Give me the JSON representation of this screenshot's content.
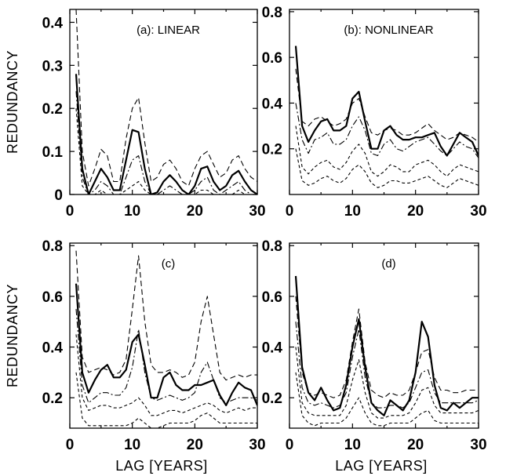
{
  "figure": {
    "ylabel": "REDUNDANCY",
    "xlabel": "LAG [YEARS]"
  },
  "chart_data": [
    {
      "type": "line",
      "title": "(a): LINEAR",
      "xlim": [
        0,
        30
      ],
      "ylim": [
        0,
        0.43
      ],
      "xticks": [
        0,
        10,
        20,
        30
      ],
      "yticks": [
        0,
        0.1,
        0.2,
        0.3,
        0.4
      ],
      "ytick_labels": [
        "0",
        "0.1",
        "0.2",
        "0.3",
        "0.4"
      ],
      "x": [
        1,
        2,
        3,
        4,
        5,
        6,
        7,
        8,
        9,
        10,
        11,
        12,
        13,
        14,
        15,
        16,
        17,
        18,
        19,
        20,
        21,
        22,
        23,
        24,
        25,
        26,
        27,
        28,
        29,
        30
      ],
      "series": [
        {
          "style": "solid",
          "values": [
            0.28,
            0.06,
            0.0,
            0.03,
            0.06,
            0.04,
            0.01,
            0.01,
            0.08,
            0.15,
            0.145,
            0.06,
            0.0,
            0.005,
            0.03,
            0.045,
            0.03,
            0.01,
            0.0,
            0.02,
            0.06,
            0.065,
            0.03,
            0.01,
            0.02,
            0.045,
            0.055,
            0.03,
            0.01,
            0.0
          ]
        },
        {
          "style": "dashed",
          "values": [
            0.43,
            0.1,
            0.02,
            0.06,
            0.105,
            0.09,
            0.03,
            0.03,
            0.13,
            0.2,
            0.225,
            0.12,
            0.03,
            0.04,
            0.07,
            0.08,
            0.06,
            0.03,
            0.02,
            0.06,
            0.09,
            0.1,
            0.07,
            0.04,
            0.05,
            0.08,
            0.09,
            0.06,
            0.04,
            0.03
          ]
        },
        {
          "style": "dash-dot",
          "values": [
            0.24,
            0.04,
            0.0,
            0.01,
            0.03,
            0.02,
            0.0,
            0.0,
            0.04,
            0.08,
            0.09,
            0.03,
            0.0,
            0.0,
            0.01,
            0.02,
            0.01,
            0.0,
            0.0,
            0.01,
            0.03,
            0.04,
            0.01,
            0.0,
            0.01,
            0.02,
            0.03,
            0.01,
            0.0,
            0.0
          ]
        },
        {
          "style": "dashed-short",
          "values": [
            0.2,
            0.02,
            0.0,
            0.0,
            0.01,
            0.0,
            0.0,
            0.0,
            0.01,
            0.02,
            0.03,
            0.01,
            0.0,
            0.0,
            0.0,
            0.0,
            0.0,
            0.0,
            0.0,
            0.0,
            0.01,
            0.01,
            0.0,
            0.0,
            0.0,
            0.0,
            0.01,
            0.0,
            0.0,
            0.0
          ]
        }
      ]
    },
    {
      "type": "line",
      "title": "(b): NONLINEAR",
      "xlim": [
        0,
        30
      ],
      "ylim": [
        0,
        0.81
      ],
      "xticks": [
        0,
        10,
        20,
        30
      ],
      "yticks": [
        0.2,
        0.4,
        0.6,
        0.8
      ],
      "ytick_labels": [
        "0.2",
        "0.4",
        "0.6",
        "0.8"
      ],
      "x": [
        1,
        2,
        3,
        4,
        5,
        6,
        7,
        8,
        9,
        10,
        11,
        12,
        13,
        14,
        15,
        16,
        17,
        18,
        19,
        20,
        21,
        22,
        23,
        24,
        25,
        26,
        27,
        28,
        29,
        30
      ],
      "series": [
        {
          "style": "solid",
          "values": [
            0.65,
            0.3,
            0.23,
            0.28,
            0.32,
            0.33,
            0.28,
            0.28,
            0.3,
            0.42,
            0.45,
            0.32,
            0.2,
            0.2,
            0.28,
            0.3,
            0.26,
            0.24,
            0.24,
            0.25,
            0.25,
            0.26,
            0.27,
            0.21,
            0.17,
            0.22,
            0.27,
            0.25,
            0.23,
            0.17
          ]
        },
        {
          "style": "dashed",
          "values": [
            0.55,
            0.32,
            0.3,
            0.33,
            0.34,
            0.32,
            0.3,
            0.31,
            0.33,
            0.4,
            0.42,
            0.34,
            0.27,
            0.26,
            0.28,
            0.29,
            0.28,
            0.26,
            0.26,
            0.27,
            0.29,
            0.31,
            0.28,
            0.26,
            0.24,
            0.25,
            0.27,
            0.26,
            0.25,
            0.23
          ]
        },
        {
          "style": "dash-dot",
          "values": [
            0.4,
            0.24,
            0.18,
            0.24,
            0.25,
            0.27,
            0.22,
            0.22,
            0.24,
            0.3,
            0.34,
            0.28,
            0.18,
            0.17,
            0.22,
            0.24,
            0.2,
            0.19,
            0.21,
            0.23,
            0.24,
            0.25,
            0.22,
            0.19,
            0.17,
            0.2,
            0.23,
            0.21,
            0.2,
            0.16
          ]
        },
        {
          "style": "dashed-short",
          "values": [
            0.3,
            0.12,
            0.09,
            0.12,
            0.14,
            0.15,
            0.12,
            0.11,
            0.14,
            0.19,
            0.22,
            0.18,
            0.1,
            0.08,
            0.1,
            0.13,
            0.12,
            0.1,
            0.1,
            0.13,
            0.14,
            0.15,
            0.13,
            0.1,
            0.08,
            0.11,
            0.13,
            0.12,
            0.11,
            0.1
          ]
        },
        {
          "style": "dashed-short",
          "values": [
            0.2,
            0.06,
            0.04,
            0.05,
            0.07,
            0.08,
            0.06,
            0.05,
            0.07,
            0.11,
            0.13,
            0.1,
            0.05,
            0.03,
            0.04,
            0.06,
            0.06,
            0.05,
            0.05,
            0.06,
            0.07,
            0.08,
            0.06,
            0.04,
            0.03,
            0.05,
            0.07,
            0.06,
            0.05,
            0.04
          ]
        }
      ]
    },
    {
      "type": "line",
      "title": "(c)",
      "xlim": [
        0,
        30
      ],
      "ylim": [
        0.08,
        0.81
      ],
      "xticks": [
        0,
        10,
        20,
        30
      ],
      "yticks": [
        0.2,
        0.4,
        0.6,
        0.8
      ],
      "ytick_labels": [
        "0.2",
        "0.4",
        "0.6",
        "0.8"
      ],
      "x": [
        1,
        2,
        3,
        4,
        5,
        6,
        7,
        8,
        9,
        10,
        11,
        12,
        13,
        14,
        15,
        16,
        17,
        18,
        19,
        20,
        21,
        22,
        23,
        24,
        25,
        26,
        27,
        28,
        29,
        30
      ],
      "series": [
        {
          "style": "solid",
          "values": [
            0.65,
            0.3,
            0.22,
            0.27,
            0.31,
            0.33,
            0.28,
            0.28,
            0.31,
            0.42,
            0.45,
            0.33,
            0.2,
            0.2,
            0.28,
            0.3,
            0.25,
            0.23,
            0.23,
            0.25,
            0.25,
            0.26,
            0.27,
            0.21,
            0.17,
            0.22,
            0.26,
            0.24,
            0.23,
            0.17
          ]
        },
        {
          "style": "dashed",
          "values": [
            0.78,
            0.36,
            0.3,
            0.31,
            0.32,
            0.31,
            0.29,
            0.3,
            0.35,
            0.55,
            0.76,
            0.5,
            0.33,
            0.3,
            0.3,
            0.31,
            0.3,
            0.28,
            0.29,
            0.34,
            0.5,
            0.6,
            0.45,
            0.3,
            0.27,
            0.28,
            0.29,
            0.28,
            0.29,
            0.29
          ]
        },
        {
          "style": "dash-dot",
          "values": [
            0.55,
            0.25,
            0.18,
            0.2,
            0.22,
            0.22,
            0.21,
            0.21,
            0.24,
            0.32,
            0.47,
            0.3,
            0.2,
            0.19,
            0.2,
            0.21,
            0.2,
            0.19,
            0.2,
            0.22,
            0.3,
            0.34,
            0.27,
            0.2,
            0.18,
            0.19,
            0.2,
            0.2,
            0.2,
            0.19
          ]
        },
        {
          "style": "dashed-short",
          "values": [
            0.45,
            0.2,
            0.15,
            0.16,
            0.17,
            0.17,
            0.16,
            0.16,
            0.17,
            0.18,
            0.2,
            0.17,
            0.13,
            0.13,
            0.14,
            0.15,
            0.15,
            0.14,
            0.15,
            0.16,
            0.17,
            0.18,
            0.17,
            0.15,
            0.14,
            0.15,
            0.16,
            0.15,
            0.16,
            0.16
          ]
        },
        {
          "style": "dashed-short",
          "values": [
            0.3,
            0.12,
            0.09,
            0.09,
            0.09,
            0.09,
            0.09,
            0.09,
            0.09,
            0.1,
            0.12,
            0.1,
            0.08,
            0.08,
            0.09,
            0.1,
            0.1,
            0.1,
            0.1,
            0.11,
            0.13,
            0.14,
            0.12,
            0.1,
            0.1,
            0.1,
            0.1,
            0.1,
            0.1,
            0.1
          ]
        }
      ]
    },
    {
      "type": "line",
      "title": "(d)",
      "xlim": [
        0,
        30
      ],
      "ylim": [
        0.08,
        0.81
      ],
      "xticks": [
        0,
        10,
        20,
        30
      ],
      "yticks": [
        0.2,
        0.4,
        0.6,
        0.8
      ],
      "ytick_labels": [
        "0.2",
        "0.4",
        "0.6",
        "0.8"
      ],
      "x": [
        1,
        2,
        3,
        4,
        5,
        6,
        7,
        8,
        9,
        10,
        11,
        12,
        13,
        14,
        15,
        16,
        17,
        18,
        19,
        20,
        21,
        22,
        23,
        24,
        25,
        26,
        27,
        28,
        29,
        30
      ],
      "series": [
        {
          "style": "solid",
          "values": [
            0.68,
            0.32,
            0.22,
            0.19,
            0.24,
            0.19,
            0.15,
            0.16,
            0.25,
            0.4,
            0.51,
            0.32,
            0.18,
            0.15,
            0.13,
            0.19,
            0.17,
            0.15,
            0.19,
            0.3,
            0.5,
            0.44,
            0.25,
            0.16,
            0.15,
            0.18,
            0.16,
            0.18,
            0.2,
            0.2
          ]
        },
        {
          "style": "dashed",
          "values": [
            0.6,
            0.3,
            0.22,
            0.21,
            0.22,
            0.21,
            0.2,
            0.21,
            0.27,
            0.42,
            0.55,
            0.34,
            0.23,
            0.21,
            0.2,
            0.22,
            0.21,
            0.21,
            0.23,
            0.3,
            0.38,
            0.39,
            0.28,
            0.23,
            0.23,
            0.22,
            0.22,
            0.23,
            0.23,
            0.23
          ]
        },
        {
          "style": "dash-dot",
          "values": [
            0.5,
            0.24,
            0.18,
            0.17,
            0.18,
            0.17,
            0.16,
            0.17,
            0.22,
            0.36,
            0.47,
            0.28,
            0.18,
            0.16,
            0.16,
            0.17,
            0.17,
            0.16,
            0.18,
            0.24,
            0.3,
            0.31,
            0.22,
            0.18,
            0.18,
            0.18,
            0.18,
            0.18,
            0.18,
            0.19
          ]
        },
        {
          "style": "dashed-short",
          "values": [
            0.4,
            0.18,
            0.14,
            0.13,
            0.13,
            0.13,
            0.13,
            0.13,
            0.17,
            0.27,
            0.35,
            0.22,
            0.14,
            0.12,
            0.12,
            0.13,
            0.13,
            0.13,
            0.14,
            0.18,
            0.23,
            0.24,
            0.17,
            0.14,
            0.14,
            0.14,
            0.14,
            0.14,
            0.14,
            0.15
          ]
        },
        {
          "style": "dashed-short",
          "values": [
            0.3,
            0.13,
            0.1,
            0.09,
            0.1,
            0.1,
            0.1,
            0.1,
            0.12,
            0.16,
            0.2,
            0.14,
            0.1,
            0.09,
            0.09,
            0.1,
            0.1,
            0.1,
            0.1,
            0.12,
            0.14,
            0.15,
            0.11,
            0.1,
            0.1,
            0.1,
            0.1,
            0.1,
            0.1,
            0.1
          ]
        }
      ]
    }
  ]
}
